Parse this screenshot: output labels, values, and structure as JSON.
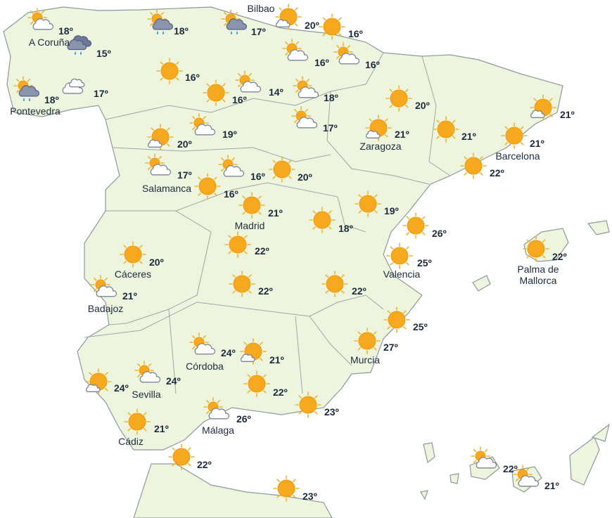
{
  "cities": [
    [
      "A Coruña"
    ],
    [
      "Pontevedra"
    ],
    [
      "Bilbao"
    ],
    [
      "Zaragoza"
    ],
    [
      "Barcelona"
    ],
    [
      "Salamanca"
    ],
    [
      "Madrid"
    ],
    [
      "Cáceres"
    ],
    [
      "Badajoz"
    ],
    [
      "Valencia"
    ],
    [
      "Palma de",
      "Mallorca"
    ],
    [
      "Murcia"
    ],
    [
      "Córdoba"
    ],
    [
      "Sevilla"
    ],
    [
      "Cádiz"
    ],
    [
      "Málaga"
    ]
  ],
  "stations": [
    {
      "icon": "sun-cloud",
      "temperature": "18º"
    },
    {
      "icon": "rain",
      "temperature": "15º"
    },
    {
      "icon": "sun-rain",
      "temperature": "18º"
    },
    {
      "icon": "sun-rain",
      "temperature": "17º"
    },
    {
      "icon": "mostly-sun",
      "temperature": "20º"
    },
    {
      "icon": "sun",
      "temperature": "16º"
    },
    {
      "icon": "sun-cloud",
      "temperature": "16º"
    },
    {
      "icon": "sun-cloud",
      "temperature": "16º"
    },
    {
      "icon": "sun-rain",
      "temperature": "18º"
    },
    {
      "icon": "cloud",
      "temperature": "17º"
    },
    {
      "icon": "sun",
      "temperature": "16º"
    },
    {
      "icon": "sun",
      "temperature": "16º"
    },
    {
      "icon": "sun-cloud",
      "temperature": "14º"
    },
    {
      "icon": "sun-cloud",
      "temperature": "18º"
    },
    {
      "icon": "sun",
      "temperature": "20º"
    },
    {
      "icon": "mostly-sun",
      "temperature": "21º"
    },
    {
      "icon": "sun-cloud",
      "temperature": "17º"
    },
    {
      "icon": "sun-cloud",
      "temperature": "19º"
    },
    {
      "icon": "mostly-sun",
      "temperature": "20º"
    },
    {
      "icon": "mostly-sun",
      "temperature": "21º"
    },
    {
      "icon": "sun",
      "temperature": "21º"
    },
    {
      "icon": "sun",
      "temperature": "21º"
    },
    {
      "icon": "sun-cloud",
      "temperature": "17º"
    },
    {
      "icon": "sun-cloud",
      "temperature": "16º"
    },
    {
      "icon": "sun",
      "temperature": "20º"
    },
    {
      "icon": "sun",
      "temperature": "16º"
    },
    {
      "icon": "sun",
      "temperature": "22º"
    },
    {
      "icon": "sun",
      "temperature": "21º"
    },
    {
      "icon": "sun",
      "temperature": "19º"
    },
    {
      "icon": "sun",
      "temperature": "18º"
    },
    {
      "icon": "sun",
      "temperature": "26º"
    },
    {
      "icon": "sun",
      "temperature": "20º"
    },
    {
      "icon": "sun",
      "temperature": "22º"
    },
    {
      "icon": "sun",
      "temperature": "25º"
    },
    {
      "icon": "sun",
      "temperature": "22º"
    },
    {
      "icon": "sun-cloud",
      "temperature": "21º"
    },
    {
      "icon": "sun",
      "temperature": "22º"
    },
    {
      "icon": "sun",
      "temperature": "22º"
    },
    {
      "icon": "sun",
      "temperature": "25º"
    },
    {
      "icon": "sun",
      "temperature": "27º"
    },
    {
      "icon": "sun-cloud",
      "temperature": "24º"
    },
    {
      "icon": "mostly-sun",
      "temperature": "21º"
    },
    {
      "icon": "mostly-sun",
      "temperature": "24º"
    },
    {
      "icon": "sun-cloud",
      "temperature": "24º"
    },
    {
      "icon": "sun",
      "temperature": "22º"
    },
    {
      "icon": "sun",
      "temperature": "23º"
    },
    {
      "icon": "sun-cloud",
      "temperature": "26º"
    },
    {
      "icon": "sun",
      "temperature": "21º"
    },
    {
      "icon": "sun",
      "temperature": "22º"
    },
    {
      "icon": "sun-cloud",
      "temperature": "22º"
    },
    {
      "icon": "sun-cloud",
      "temperature": "21º"
    },
    {
      "icon": "sun",
      "temperature": "23º"
    }
  ]
}
